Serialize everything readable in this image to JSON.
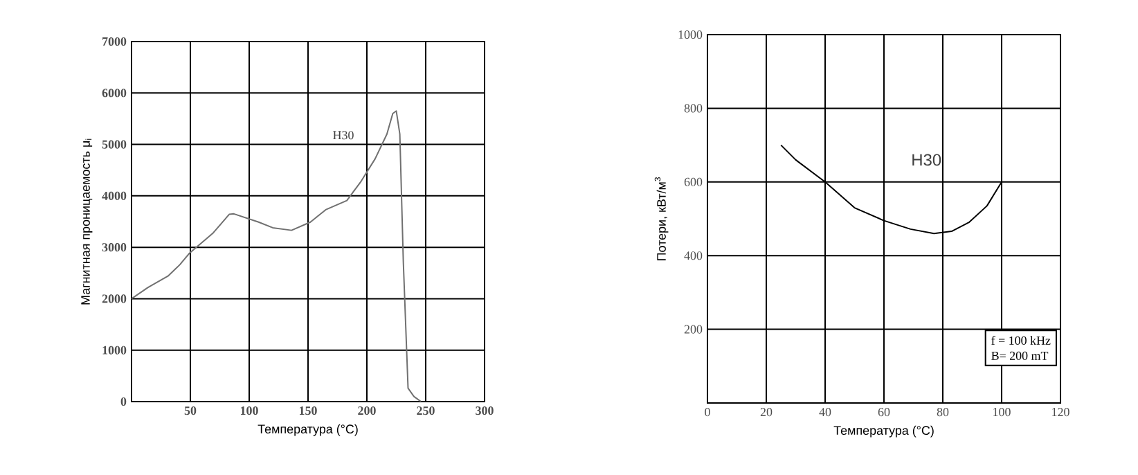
{
  "chart_data": [
    {
      "type": "line",
      "xlabel": "Температура (°C)",
      "ylabel": "Магнитная проницаемость μ$_{i}$",
      "xlim": [
        0,
        300
      ],
      "ylim": [
        0,
        7000
      ],
      "xticks": [
        50,
        100,
        150,
        200,
        250,
        300
      ],
      "yticks": [
        0,
        1000,
        2000,
        3000,
        4000,
        5000,
        6000,
        7000
      ],
      "grid": true,
      "series": [
        {
          "name": "H30",
          "color": "#707070",
          "x": [
            0,
            14,
            31,
            41,
            49,
            69,
            83,
            87,
            108,
            120,
            136,
            152,
            165,
            183,
            195,
            207,
            217,
            222,
            225,
            228,
            231,
            235,
            240,
            246
          ],
          "values": [
            2000,
            2220,
            2440,
            2660,
            2880,
            3270,
            3640,
            3650,
            3490,
            3380,
            3330,
            3490,
            3730,
            3910,
            4280,
            4720,
            5200,
            5600,
            5650,
            5200,
            2700,
            260,
            100,
            0
          ]
        }
      ]
    },
    {
      "type": "line",
      "xlabel": "Температура (°C)",
      "ylabel": "Потери, кВт/м$^{3}$",
      "xlim": [
        0,
        120
      ],
      "ylim": [
        0,
        1000
      ],
      "xticks": [
        0,
        20,
        40,
        60,
        80,
        100,
        120
      ],
      "yticks": [
        200,
        400,
        600,
        800,
        1000
      ],
      "grid": true,
      "annotations": [
        "f = 100 kHz",
        "B= 200 mT"
      ],
      "series": [
        {
          "name": "H30",
          "color": "#000000",
          "x": [
            25,
            30,
            40,
            50,
            60,
            69,
            77,
            83,
            89,
            95,
            100
          ],
          "values": [
            700,
            660,
            600,
            530,
            495,
            472,
            460,
            466,
            491,
            535,
            600
          ]
        }
      ]
    }
  ]
}
